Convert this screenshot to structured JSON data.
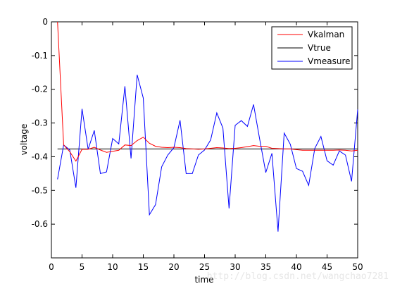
{
  "chart_data": {
    "type": "line",
    "title": "",
    "xlabel": "time",
    "ylabel": "voltage",
    "xlim": [
      0,
      50
    ],
    "ylim": [
      -0.7,
      0
    ],
    "xticks": [
      0,
      5,
      10,
      15,
      20,
      25,
      30,
      35,
      40,
      45,
      50
    ],
    "yticks": [
      0,
      -0.1,
      -0.2,
      -0.3,
      -0.4,
      -0.5,
      -0.6
    ],
    "ytick_labels": [
      "0",
      "-0.1",
      "-0.2",
      "-0.3",
      "-0.4",
      "-0.5",
      "-0.6"
    ],
    "grid": false,
    "legend_position": "top-right",
    "x": [
      1,
      2,
      3,
      4,
      5,
      6,
      7,
      8,
      9,
      10,
      11,
      12,
      13,
      14,
      15,
      16,
      17,
      18,
      19,
      20,
      21,
      22,
      23,
      24,
      25,
      26,
      27,
      28,
      29,
      30,
      31,
      32,
      33,
      34,
      35,
      36,
      37,
      38,
      39,
      40,
      41,
      42,
      43,
      44,
      45,
      46,
      47,
      48,
      49,
      50
    ],
    "series": [
      {
        "name": "Vkalman",
        "color": "#ff0000",
        "values": [
          0,
          -0.365,
          -0.385,
          -0.413,
          -0.378,
          -0.378,
          -0.372,
          -0.38,
          -0.387,
          -0.384,
          -0.381,
          -0.365,
          -0.367,
          -0.352,
          -0.342,
          -0.36,
          -0.369,
          -0.372,
          -0.373,
          -0.372,
          -0.373,
          -0.376,
          -0.377,
          -0.378,
          -0.377,
          -0.375,
          -0.373,
          -0.374,
          -0.376,
          -0.375,
          -0.373,
          -0.37,
          -0.367,
          -0.369,
          -0.369,
          -0.375,
          -0.376,
          -0.377,
          -0.377,
          -0.379,
          -0.381,
          -0.381,
          -0.381,
          -0.381,
          -0.381,
          -0.381,
          -0.38,
          -0.381,
          -0.383,
          -0.381
        ]
      },
      {
        "name": "Vtrue",
        "color": "#000000",
        "values": [
          -0.377,
          -0.377,
          -0.377,
          -0.377,
          -0.377,
          -0.377,
          -0.377,
          -0.377,
          -0.377,
          -0.377,
          -0.377,
          -0.377,
          -0.377,
          -0.377,
          -0.377,
          -0.377,
          -0.377,
          -0.377,
          -0.377,
          -0.377,
          -0.377,
          -0.377,
          -0.377,
          -0.377,
          -0.377,
          -0.377,
          -0.377,
          -0.377,
          -0.377,
          -0.377,
          -0.377,
          -0.377,
          -0.377,
          -0.377,
          -0.377,
          -0.377,
          -0.377,
          -0.377,
          -0.377,
          -0.377,
          -0.377,
          -0.377,
          -0.377,
          -0.377,
          -0.377,
          -0.377,
          -0.377,
          -0.377,
          -0.377,
          -0.377
        ]
      },
      {
        "name": "Vmeasure",
        "color": "#0000ff",
        "values": [
          -0.467,
          -0.365,
          -0.38,
          -0.492,
          -0.258,
          -0.378,
          -0.322,
          -0.45,
          -0.445,
          -0.346,
          -0.362,
          -0.191,
          -0.405,
          -0.157,
          -0.226,
          -0.572,
          -0.542,
          -0.43,
          -0.395,
          -0.373,
          -0.292,
          -0.45,
          -0.45,
          -0.395,
          -0.38,
          -0.35,
          -0.27,
          -0.315,
          -0.553,
          -0.307,
          -0.293,
          -0.31,
          -0.245,
          -0.348,
          -0.447,
          -0.39,
          -0.622,
          -0.33,
          -0.363,
          -0.435,
          -0.443,
          -0.485,
          -0.375,
          -0.34,
          -0.412,
          -0.425,
          -0.383,
          -0.395,
          -0.473,
          -0.26
        ]
      }
    ]
  },
  "watermark": "http://blog.csdn.net/wangchao7281"
}
